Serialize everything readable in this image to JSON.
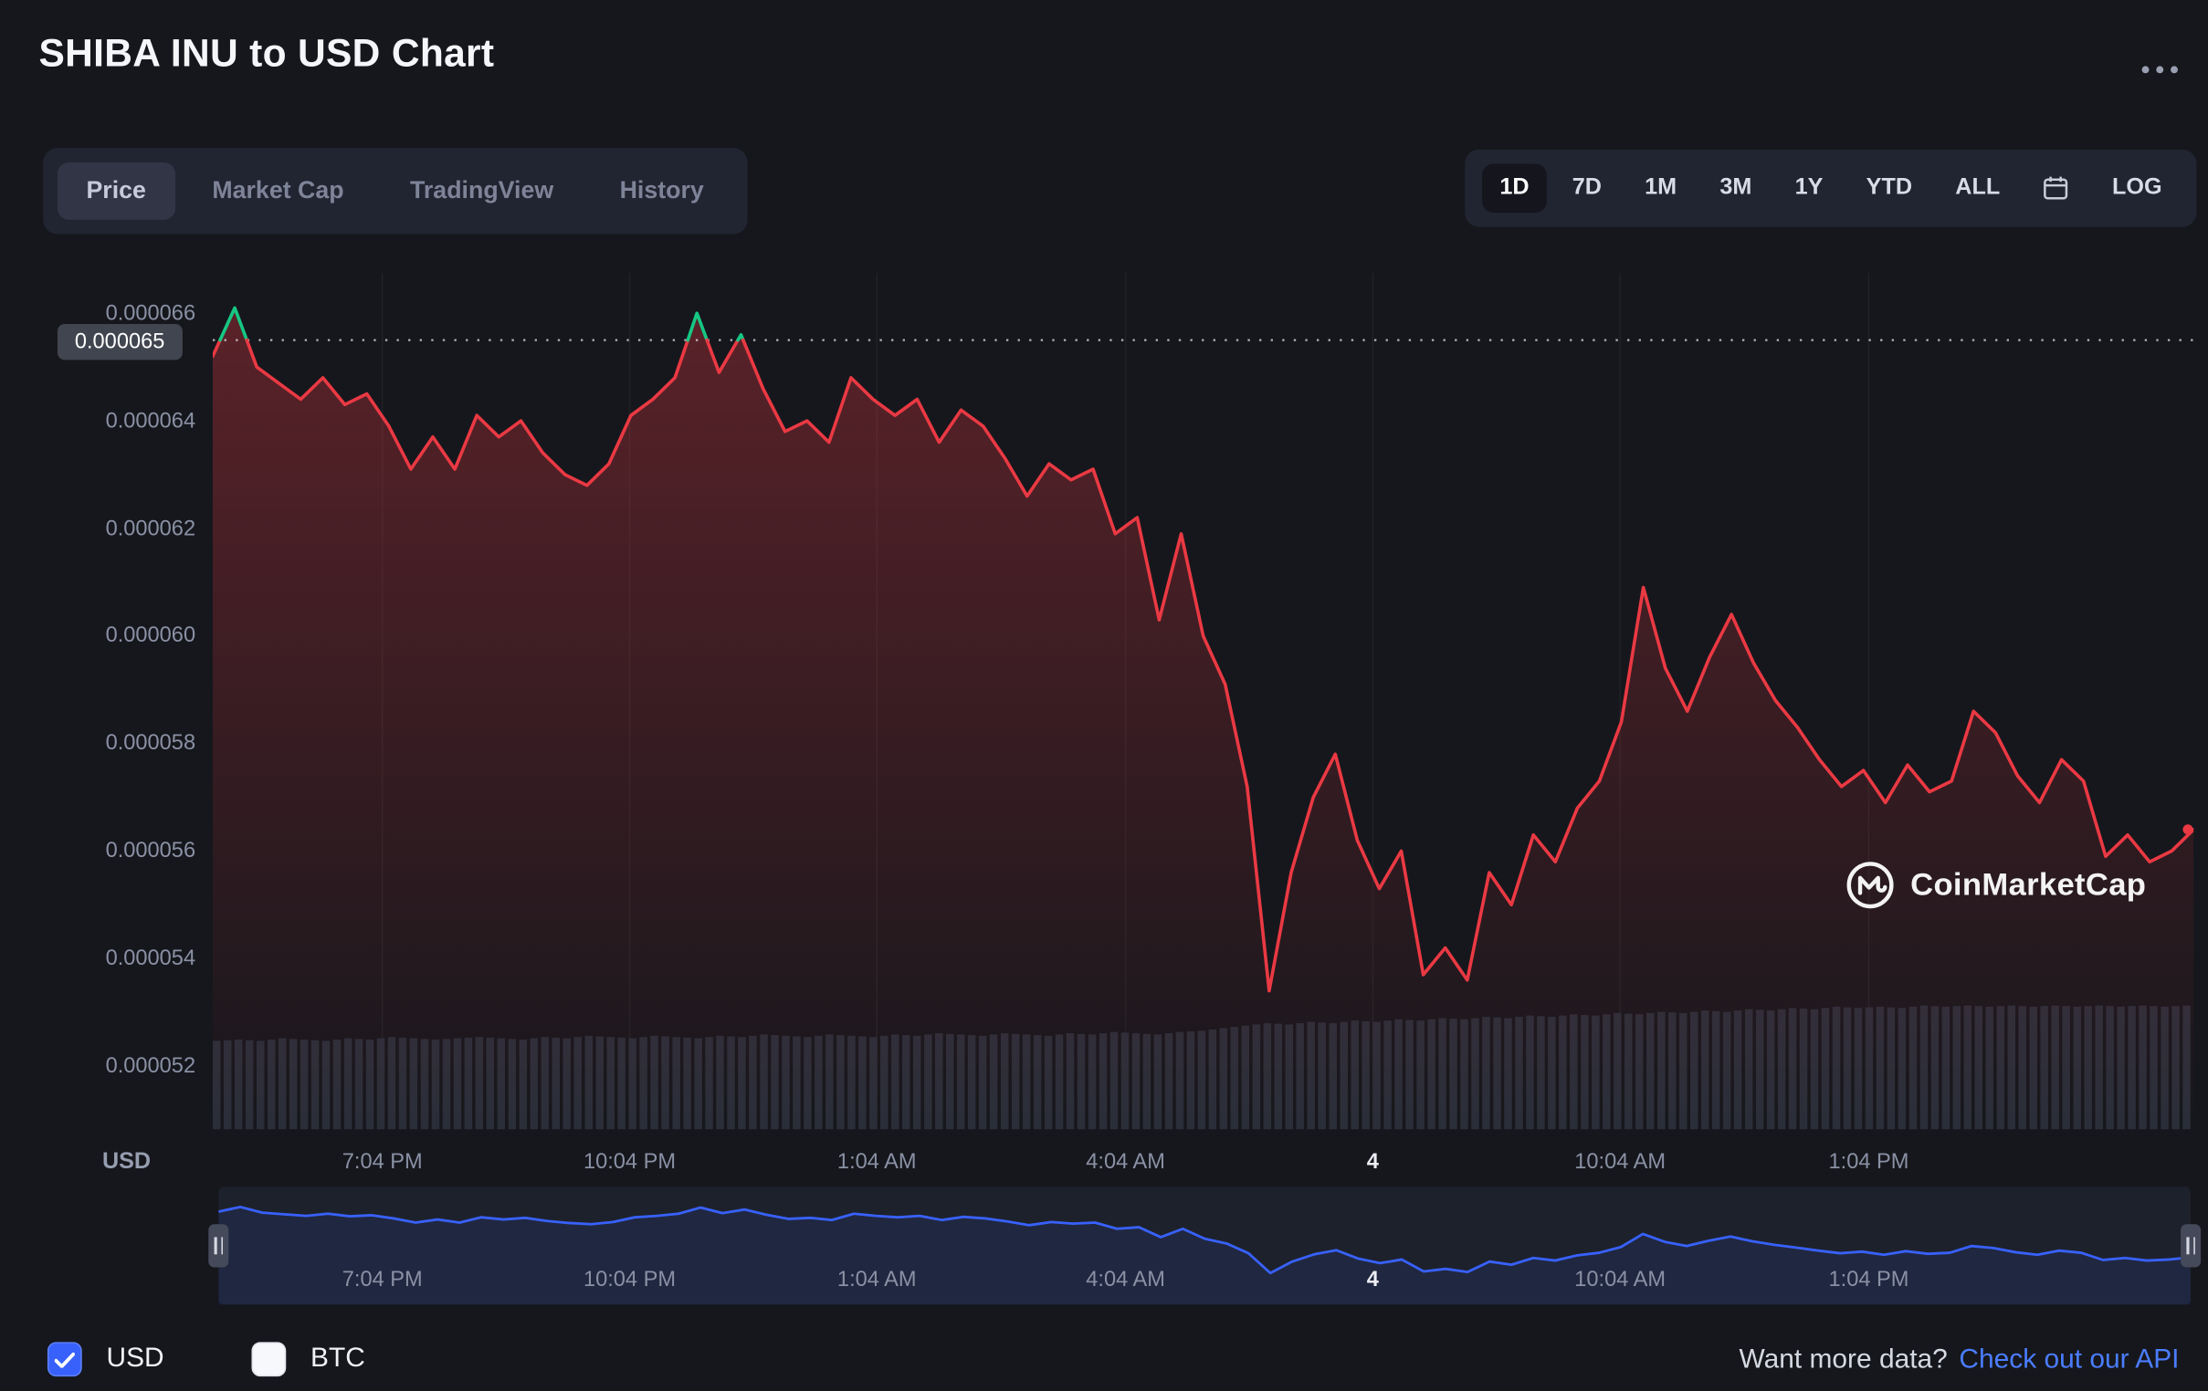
{
  "header": {
    "title": "SHIBA INU to USD Chart"
  },
  "tabs": {
    "items": [
      {
        "label": "Price",
        "active": true
      },
      {
        "label": "Market Cap",
        "active": false
      },
      {
        "label": "TradingView",
        "active": false
      },
      {
        "label": "History",
        "active": false
      }
    ]
  },
  "range_selector": {
    "items": [
      {
        "label": "1D",
        "active": true
      },
      {
        "label": "7D",
        "active": false
      },
      {
        "label": "1M",
        "active": false
      },
      {
        "label": "3M",
        "active": false
      },
      {
        "label": "1Y",
        "active": false
      },
      {
        "label": "YTD",
        "active": false
      },
      {
        "label": "ALL",
        "active": false
      },
      {
        "icon": "calendar"
      },
      {
        "label": "LOG",
        "active": false
      }
    ]
  },
  "axis": {
    "price_marker": "0.000065",
    "unit_label": "USD",
    "y_labels": [
      "0.000066",
      "0.000064",
      "0.000062",
      "0.000060",
      "0.000058",
      "0.000056",
      "0.000054",
      "0.000052"
    ],
    "x_labels": [
      {
        "text": "7:04 PM"
      },
      {
        "text": "10:04 PM"
      },
      {
        "text": "1:04 AM"
      },
      {
        "text": "4:04 AM"
      },
      {
        "text": "4",
        "emphasis": true
      },
      {
        "text": "10:04 AM"
      },
      {
        "text": "1:04 PM"
      }
    ]
  },
  "navigator": {
    "x_labels": [
      {
        "text": "7:04 PM"
      },
      {
        "text": "10:04 PM"
      },
      {
        "text": "1:04 AM"
      },
      {
        "text": "4:04 AM"
      },
      {
        "text": "4",
        "emphasis": true
      },
      {
        "text": "10:04 AM"
      },
      {
        "text": "1:04 PM"
      }
    ]
  },
  "watermark": {
    "text": "CoinMarketCap"
  },
  "footer": {
    "currencies": [
      {
        "label": "USD",
        "checked": true
      },
      {
        "label": "BTC",
        "checked": false
      }
    ],
    "prompt": "Want more data?",
    "link": "Check out our API"
  },
  "colors": {
    "up": "#16c784",
    "down": "#ea3943",
    "down_fill_top": "rgba(234,57,67,0.32)",
    "volume": "#2a2e39",
    "navigator_line": "#3861fb",
    "navigator_fill": "rgba(56,97,251,0.10)",
    "link": "#4a7dff",
    "checkbox_checked": "#3861fb",
    "grid": "rgba(255,255,255,0.045)",
    "prev_close_line": "#e6e8ee"
  },
  "chart_data": {
    "type": "line",
    "title": "SHIBA INU to USD, 1D chart",
    "xlabel": "time",
    "ylabel": "USD",
    "x_ticks": [
      "7:04 PM",
      "10:04 PM",
      "1:04 AM",
      "4:04 AM",
      "4",
      "10:04 AM",
      "1:04 PM"
    ],
    "y_ticks": [
      6.6e-05,
      6.4e-05,
      6.2e-05,
      6e-05,
      5.8e-05,
      5.6e-05,
      5.4e-05,
      5.2e-05
    ],
    "ylim": [
      5.15e-05,
      6.65e-05
    ],
    "previous_close": 6.55e-05,
    "grid": "faint vertical lines at time ticks",
    "legend": "none",
    "series": [
      {
        "name": "SHIB price (USD)",
        "color_above_prev_close": "#16c784",
        "color_below_prev_close": "#ea3943",
        "values": [
          6.52e-05,
          6.61e-05,
          6.5e-05,
          6.47e-05,
          6.44e-05,
          6.48e-05,
          6.43e-05,
          6.45e-05,
          6.39e-05,
          6.31e-05,
          6.37e-05,
          6.31e-05,
          6.41e-05,
          6.37e-05,
          6.4e-05,
          6.34e-05,
          6.3e-05,
          6.28e-05,
          6.32e-05,
          6.41e-05,
          6.44e-05,
          6.48e-05,
          6.6e-05,
          6.49e-05,
          6.56e-05,
          6.46e-05,
          6.38e-05,
          6.4e-05,
          6.36e-05,
          6.48e-05,
          6.44e-05,
          6.41e-05,
          6.44e-05,
          6.36e-05,
          6.42e-05,
          6.39e-05,
          6.33e-05,
          6.26e-05,
          6.32e-05,
          6.29e-05,
          6.31e-05,
          6.19e-05,
          6.22e-05,
          6.03e-05,
          6.19e-05,
          6e-05,
          5.91e-05,
          5.72e-05,
          5.34e-05,
          5.56e-05,
          5.7e-05,
          5.78e-05,
          5.62e-05,
          5.53e-05,
          5.6e-05,
          5.37e-05,
          5.42e-05,
          5.36e-05,
          5.56e-05,
          5.5e-05,
          5.63e-05,
          5.58e-05,
          5.68e-05,
          5.73e-05,
          5.84e-05,
          6.09e-05,
          5.94e-05,
          5.86e-05,
          5.96e-05,
          6.04e-05,
          5.95e-05,
          5.88e-05,
          5.83e-05,
          5.77e-05,
          5.72e-05,
          5.75e-05,
          5.69e-05,
          5.76e-05,
          5.71e-05,
          5.73e-05,
          5.86e-05,
          5.82e-05,
          5.74e-05,
          5.69e-05,
          5.77e-05,
          5.73e-05,
          5.59e-05,
          5.63e-05,
          5.58e-05,
          5.6e-05,
          5.64e-05
        ]
      }
    ],
    "volume": {
      "name": "volume",
      "color": "#2a2e39",
      "values_normalized": [
        0.7,
        0.71,
        0.7,
        0.72,
        0.71,
        0.7,
        0.72,
        0.71,
        0.73,
        0.72,
        0.71,
        0.72,
        0.73,
        0.72,
        0.71,
        0.73,
        0.72,
        0.74,
        0.73,
        0.72,
        0.74,
        0.73,
        0.72,
        0.74,
        0.73,
        0.75,
        0.74,
        0.73,
        0.75,
        0.74,
        0.73,
        0.75,
        0.74,
        0.76,
        0.75,
        0.74,
        0.76,
        0.75,
        0.74,
        0.76,
        0.75,
        0.77,
        0.76,
        0.75,
        0.77,
        0.78,
        0.8,
        0.82,
        0.84,
        0.83,
        0.85,
        0.84,
        0.86,
        0.85,
        0.87,
        0.86,
        0.88,
        0.87,
        0.89,
        0.88,
        0.9,
        0.89,
        0.91,
        0.9,
        0.92,
        0.91,
        0.93,
        0.92,
        0.94,
        0.93,
        0.95,
        0.94,
        0.96,
        0.95,
        0.97,
        0.96,
        0.97,
        0.96,
        0.98,
        0.97,
        0.98,
        0.97,
        0.98,
        0.97,
        0.98,
        0.97,
        0.98,
        0.97,
        0.98,
        0.97,
        0.98
      ]
    }
  }
}
